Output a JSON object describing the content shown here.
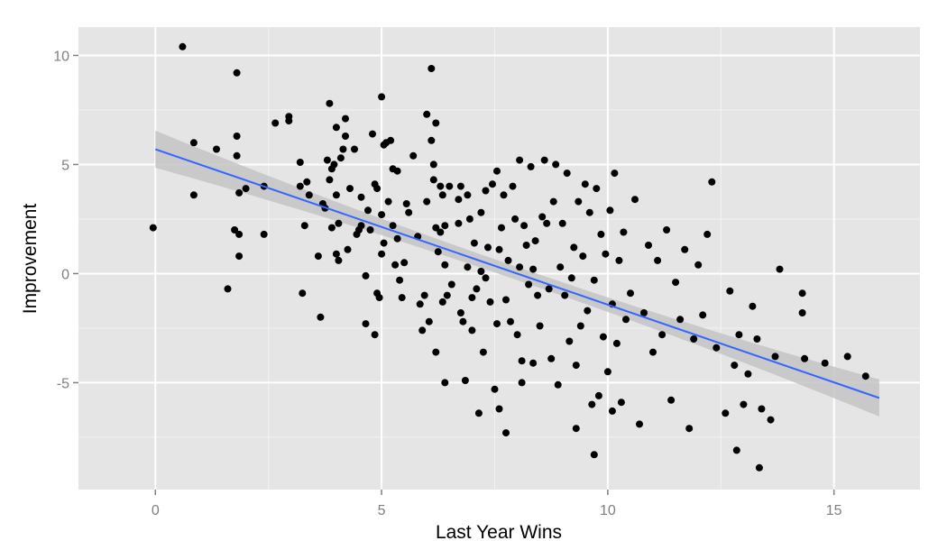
{
  "chart_data": {
    "type": "scatter",
    "title": "",
    "xlabel": "Last Year Wins",
    "ylabel": "Improvement",
    "xlim": [
      -1.7,
      16.9
    ],
    "ylim": [
      -9.9,
      11.3
    ],
    "xticks": [
      0,
      5,
      10,
      15
    ],
    "xtick_labels": [
      "0",
      "5",
      "10",
      "15"
    ],
    "yticks": [
      -5,
      0,
      5,
      10
    ],
    "ytick_labels": [
      "-5",
      "0",
      "5",
      "10"
    ],
    "grid": true,
    "legend": "none",
    "colors": {
      "panel": "#e5e5e5",
      "grid_major": "#ffffff",
      "points": "#000000",
      "fit_line": "#3366ff",
      "confidence_band": "#c4c4c4"
    },
    "fit": {
      "method": "linear",
      "x_range": [
        0,
        16
      ],
      "y_at_start": 5.7,
      "y_at_end": -5.7,
      "band_halfwidth_at_start": 0.85,
      "band_halfwidth_at_mid": 0.3,
      "band_halfwidth_at_end": 0.85
    },
    "points": [
      [
        -0.05,
        2.1
      ],
      [
        0.6,
        10.4
      ],
      [
        0.85,
        3.6
      ],
      [
        0.85,
        6.0
      ],
      [
        1.35,
        5.7
      ],
      [
        1.6,
        -0.7
      ],
      [
        1.75,
        2.0
      ],
      [
        1.8,
        9.2
      ],
      [
        1.8,
        6.3
      ],
      [
        1.8,
        5.4
      ],
      [
        1.85,
        3.7
      ],
      [
        1.85,
        1.8
      ],
      [
        1.85,
        0.8
      ],
      [
        2.0,
        3.9
      ],
      [
        2.4,
        4.0
      ],
      [
        2.4,
        1.8
      ],
      [
        2.65,
        6.9
      ],
      [
        2.95,
        7.2
      ],
      [
        2.95,
        7.0
      ],
      [
        3.2,
        5.1
      ],
      [
        3.2,
        4.0
      ],
      [
        3.25,
        -0.9
      ],
      [
        3.3,
        2.2
      ],
      [
        3.35,
        4.2
      ],
      [
        3.4,
        3.6
      ],
      [
        3.6,
        0.8
      ],
      [
        3.65,
        -2.0
      ],
      [
        3.7,
        3.2
      ],
      [
        3.75,
        3.0
      ],
      [
        3.8,
        5.2
      ],
      [
        3.85,
        7.8
      ],
      [
        3.85,
        4.3
      ],
      [
        3.9,
        2.1
      ],
      [
        3.9,
        4.8
      ],
      [
        3.95,
        5.0
      ],
      [
        4.0,
        6.7
      ],
      [
        4.0,
        3.6
      ],
      [
        4.0,
        0.9
      ],
      [
        4.05,
        0.6
      ],
      [
        4.05,
        2.3
      ],
      [
        4.1,
        5.3
      ],
      [
        4.15,
        5.7
      ],
      [
        4.2,
        7.1
      ],
      [
        4.2,
        6.3
      ],
      [
        4.25,
        1.1
      ],
      [
        4.3,
        3.9
      ],
      [
        4.4,
        5.7
      ],
      [
        4.45,
        1.8
      ],
      [
        4.5,
        2.0
      ],
      [
        4.55,
        3.5
      ],
      [
        4.55,
        2.2
      ],
      [
        4.65,
        -0.1
      ],
      [
        4.65,
        -2.3
      ],
      [
        4.7,
        2.9
      ],
      [
        4.75,
        2.0
      ],
      [
        4.8,
        6.4
      ],
      [
        4.85,
        4.1
      ],
      [
        4.85,
        -2.8
      ],
      [
        4.9,
        3.9
      ],
      [
        4.9,
        -0.9
      ],
      [
        4.95,
        -1.1
      ],
      [
        5.0,
        8.1
      ],
      [
        5.0,
        2.7
      ],
      [
        5.0,
        0.9
      ],
      [
        5.05,
        1.4
      ],
      [
        5.05,
        5.9
      ],
      [
        5.1,
        6.0
      ],
      [
        5.15,
        3.3
      ],
      [
        5.2,
        6.1
      ],
      [
        5.25,
        2.2
      ],
      [
        5.25,
        4.8
      ],
      [
        5.3,
        0.4
      ],
      [
        5.35,
        4.7
      ],
      [
        5.35,
        1.6
      ],
      [
        5.4,
        -0.3
      ],
      [
        5.45,
        -1.1
      ],
      [
        5.5,
        0.5
      ],
      [
        5.55,
        3.2
      ],
      [
        5.6,
        2.8
      ],
      [
        5.7,
        5.4
      ],
      [
        5.8,
        1.7
      ],
      [
        5.85,
        -1.4
      ],
      [
        5.9,
        -2.6
      ],
      [
        5.95,
        -1.0
      ],
      [
        6.0,
        7.3
      ],
      [
        6.0,
        3.3
      ],
      [
        6.05,
        -2.2
      ],
      [
        6.1,
        6.1
      ],
      [
        6.1,
        9.4
      ],
      [
        6.15,
        4.3
      ],
      [
        6.15,
        5.0
      ],
      [
        6.2,
        6.9
      ],
      [
        6.2,
        2.1
      ],
      [
        6.2,
        -3.6
      ],
      [
        6.25,
        1.0
      ],
      [
        6.3,
        4.0
      ],
      [
        6.3,
        1.9
      ],
      [
        6.35,
        3.6
      ],
      [
        6.35,
        -1.3
      ],
      [
        6.4,
        2.2
      ],
      [
        6.4,
        0.4
      ],
      [
        6.4,
        -5.0
      ],
      [
        6.45,
        -1.0
      ],
      [
        6.5,
        4.0
      ],
      [
        6.55,
        -0.5
      ],
      [
        6.7,
        2.3
      ],
      [
        6.7,
        3.4
      ],
      [
        6.75,
        4.0
      ],
      [
        6.75,
        -1.8
      ],
      [
        6.8,
        -2.2
      ],
      [
        6.85,
        -4.9
      ],
      [
        6.9,
        3.6
      ],
      [
        6.9,
        0.3
      ],
      [
        6.95,
        2.5
      ],
      [
        7.0,
        -1.1
      ],
      [
        7.0,
        -2.6
      ],
      [
        7.05,
        1.4
      ],
      [
        7.1,
        -0.7
      ],
      [
        7.15,
        -6.4
      ],
      [
        7.2,
        2.8
      ],
      [
        7.2,
        0.1
      ],
      [
        7.25,
        -3.6
      ],
      [
        7.3,
        3.8
      ],
      [
        7.3,
        -0.2
      ],
      [
        7.35,
        1.2
      ],
      [
        7.4,
        -1.3
      ],
      [
        7.45,
        4.1
      ],
      [
        7.5,
        -5.3
      ],
      [
        7.55,
        4.7
      ],
      [
        7.55,
        -2.3
      ],
      [
        7.6,
        1.1
      ],
      [
        7.65,
        2.1
      ],
      [
        7.7,
        3.6
      ],
      [
        7.75,
        -1.2
      ],
      [
        7.75,
        -7.3
      ],
      [
        7.8,
        0.6
      ],
      [
        7.85,
        -2.2
      ],
      [
        7.9,
        4.0
      ],
      [
        7.95,
        2.5
      ],
      [
        8.0,
        -2.8
      ],
      [
        8.05,
        5.2
      ],
      [
        8.05,
        0.3
      ],
      [
        8.1,
        -4.0
      ],
      [
        8.1,
        -5.0
      ],
      [
        8.15,
        2.2
      ],
      [
        8.2,
        1.3
      ],
      [
        8.25,
        -0.5
      ],
      [
        8.3,
        4.9
      ],
      [
        8.35,
        0.2
      ],
      [
        8.4,
        1.5
      ],
      [
        8.45,
        -1.0
      ],
      [
        8.5,
        -2.4
      ],
      [
        8.55,
        2.6
      ],
      [
        8.6,
        5.2
      ],
      [
        8.65,
        2.3
      ],
      [
        8.7,
        -0.7
      ],
      [
        8.75,
        -3.9
      ],
      [
        8.8,
        3.3
      ],
      [
        8.85,
        5.0
      ],
      [
        8.9,
        -5.1
      ],
      [
        8.95,
        0.3
      ],
      [
        9.0,
        2.3
      ],
      [
        9.05,
        -1.0
      ],
      [
        9.1,
        4.6
      ],
      [
        9.15,
        -3.1
      ],
      [
        9.2,
        -0.2
      ],
      [
        9.25,
        1.2
      ],
      [
        9.3,
        -4.2
      ],
      [
        9.35,
        3.3
      ],
      [
        9.4,
        -2.4
      ],
      [
        9.45,
        0.8
      ],
      [
        9.5,
        4.1
      ],
      [
        9.55,
        -1.7
      ],
      [
        9.6,
        2.8
      ],
      [
        9.65,
        -6.0
      ],
      [
        9.7,
        -0.3
      ],
      [
        9.75,
        3.9
      ],
      [
        9.8,
        -5.6
      ],
      [
        9.85,
        1.8
      ],
      [
        9.9,
        -2.9
      ],
      [
        9.95,
        0.9
      ],
      [
        10.0,
        -4.5
      ],
      [
        10.05,
        2.9
      ],
      [
        10.1,
        -1.4
      ],
      [
        10.15,
        4.6
      ],
      [
        10.2,
        -3.2
      ],
      [
        10.25,
        0.6
      ],
      [
        10.3,
        -5.9
      ],
      [
        10.35,
        1.9
      ],
      [
        10.4,
        -2.1
      ],
      [
        10.5,
        -0.9
      ],
      [
        10.6,
        3.4
      ],
      [
        10.7,
        -6.9
      ],
      [
        10.8,
        -1.8
      ],
      [
        10.9,
        1.3
      ],
      [
        11.0,
        -3.6
      ],
      [
        11.1,
        0.6
      ],
      [
        11.2,
        -2.8
      ],
      [
        11.3,
        2.0
      ],
      [
        11.4,
        -5.8
      ],
      [
        11.5,
        -0.4
      ],
      [
        11.6,
        -2.1
      ],
      [
        11.7,
        1.1
      ],
      [
        11.8,
        -7.1
      ],
      [
        11.9,
        -3.0
      ],
      [
        12.0,
        0.4
      ],
      [
        12.1,
        -1.9
      ],
      [
        12.2,
        1.8
      ],
      [
        12.3,
        4.2
      ],
      [
        12.4,
        -3.4
      ],
      [
        12.6,
        -6.4
      ],
      [
        12.7,
        -0.8
      ],
      [
        12.8,
        -4.2
      ],
      [
        12.9,
        -2.8
      ],
      [
        13.0,
        -6.0
      ],
      [
        13.1,
        -4.6
      ],
      [
        13.2,
        -1.5
      ],
      [
        13.3,
        -3.0
      ],
      [
        13.35,
        -8.9
      ],
      [
        13.4,
        -6.2
      ],
      [
        13.6,
        -6.7
      ],
      [
        13.7,
        -3.8
      ],
      [
        13.8,
        0.2
      ],
      [
        14.3,
        -0.9
      ],
      [
        14.3,
        -1.8
      ],
      [
        14.35,
        -3.9
      ],
      [
        14.8,
        -4.1
      ],
      [
        15.3,
        -3.8
      ],
      [
        15.7,
        -4.7
      ],
      [
        12.85,
        -8.1
      ],
      [
        9.7,
        -8.3
      ],
      [
        9.3,
        -7.1
      ],
      [
        8.35,
        -4.1
      ],
      [
        7.6,
        -6.2
      ],
      [
        10.1,
        -6.3
      ]
    ]
  }
}
